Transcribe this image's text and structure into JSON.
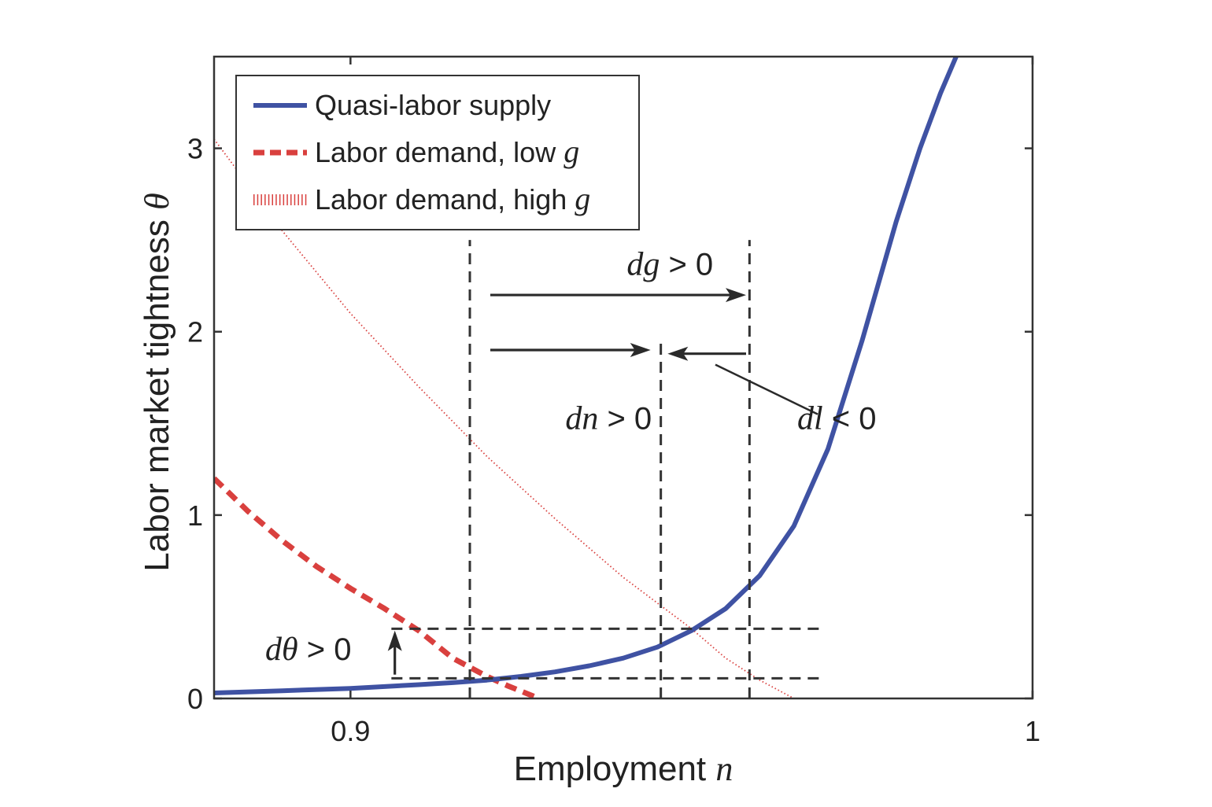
{
  "chart_data": {
    "type": "line",
    "xlabel": "Employment",
    "xlabel_symbol": "n",
    "ylabel": "Labor market tightness",
    "ylabel_symbol": "θ",
    "xlim": [
      0.88,
      1.0
    ],
    "ylim": [
      0,
      3.5
    ],
    "x_ticks": [
      {
        "value": 0.9,
        "label": "0.9"
      },
      {
        "value": 1.0,
        "label": "1"
      }
    ],
    "y_ticks": [
      {
        "value": 0,
        "label": "0"
      },
      {
        "value": 1,
        "label": "1"
      },
      {
        "value": 2,
        "label": "2"
      },
      {
        "value": 3,
        "label": "3"
      }
    ],
    "grid": false,
    "legend_position": "top-left",
    "series": [
      {
        "name": "Quasi-labor supply",
        "style": "solid",
        "color": "#3f52a3",
        "x": [
          0.88,
          0.89,
          0.9,
          0.91,
          0.915,
          0.92,
          0.925,
          0.93,
          0.935,
          0.94,
          0.945,
          0.95,
          0.955,
          0.96,
          0.965,
          0.97,
          0.975,
          0.98,
          0.9835,
          0.9865,
          0.9888
        ],
        "y": [
          0.03,
          0.042,
          0.055,
          0.075,
          0.086,
          0.1,
          0.12,
          0.145,
          0.178,
          0.22,
          0.28,
          0.37,
          0.49,
          0.67,
          0.94,
          1.36,
          1.95,
          2.6,
          3.0,
          3.3,
          3.5
        ]
      },
      {
        "name": "Labor demand, low g",
        "name_symbol": "g",
        "style": "dashed",
        "color": "#d9403e",
        "x": [
          0.88,
          0.885,
          0.89,
          0.895,
          0.9,
          0.905,
          0.91,
          0.915,
          0.92,
          0.923,
          0.927
        ],
        "y": [
          1.2,
          1.02,
          0.86,
          0.72,
          0.6,
          0.49,
          0.37,
          0.22,
          0.12,
          0.07,
          0.01
        ]
      },
      {
        "name": "Labor demand, high g",
        "name_symbol": "g",
        "style": "dotted",
        "color": "#d9403e",
        "x": [
          0.88,
          0.89,
          0.9,
          0.91,
          0.92,
          0.93,
          0.94,
          0.95,
          0.955,
          0.96,
          0.965
        ],
        "y": [
          3.05,
          2.55,
          2.1,
          1.7,
          1.32,
          0.98,
          0.66,
          0.38,
          0.22,
          0.1,
          0.0
        ]
      }
    ],
    "reference_lines": [
      {
        "orientation": "vertical",
        "x": 0.9175,
        "y_from": 0,
        "y_to": 2.5
      },
      {
        "orientation": "vertical",
        "x": 0.9455,
        "y_from": 0,
        "y_to": 1.95
      },
      {
        "orientation": "vertical",
        "x": 0.9585,
        "y_from": 0,
        "y_to": 2.5
      },
      {
        "orientation": "horizontal",
        "y": 0.38,
        "x_from": 0.906,
        "x_to": 0.969
      },
      {
        "orientation": "horizontal",
        "y": 0.11,
        "x_from": 0.906,
        "x_to": 0.969
      }
    ],
    "arrows": [
      {
        "from": [
          0.9205,
          2.2
        ],
        "to": [
          0.958,
          2.2
        ]
      },
      {
        "from": [
          0.9205,
          1.9
        ],
        "to": [
          0.944,
          1.9
        ]
      },
      {
        "from": [
          0.958,
          1.88
        ],
        "to": [
          0.9465,
          1.88
        ]
      },
      {
        "from": [
          0.9065,
          0.13
        ],
        "to": [
          0.9065,
          0.37
        ]
      }
    ],
    "annotations": [
      {
        "italic": "dg",
        "text": " > 0",
        "x": 0.9405,
        "y": 2.31,
        "leader": null
      },
      {
        "italic": "dn",
        "text": " > 0",
        "x": 0.9315,
        "y": 1.47,
        "leader": null
      },
      {
        "italic": "dl",
        "text": " < 0",
        "x": 0.9655,
        "y": 1.47,
        "leader": {
          "from": [
            0.9685,
            1.55
          ],
          "to": [
            0.9535,
            1.82
          ]
        }
      },
      {
        "italic": "dθ",
        "text": " > 0",
        "x": 0.8875,
        "y": 0.21,
        "leader": null
      }
    ]
  }
}
